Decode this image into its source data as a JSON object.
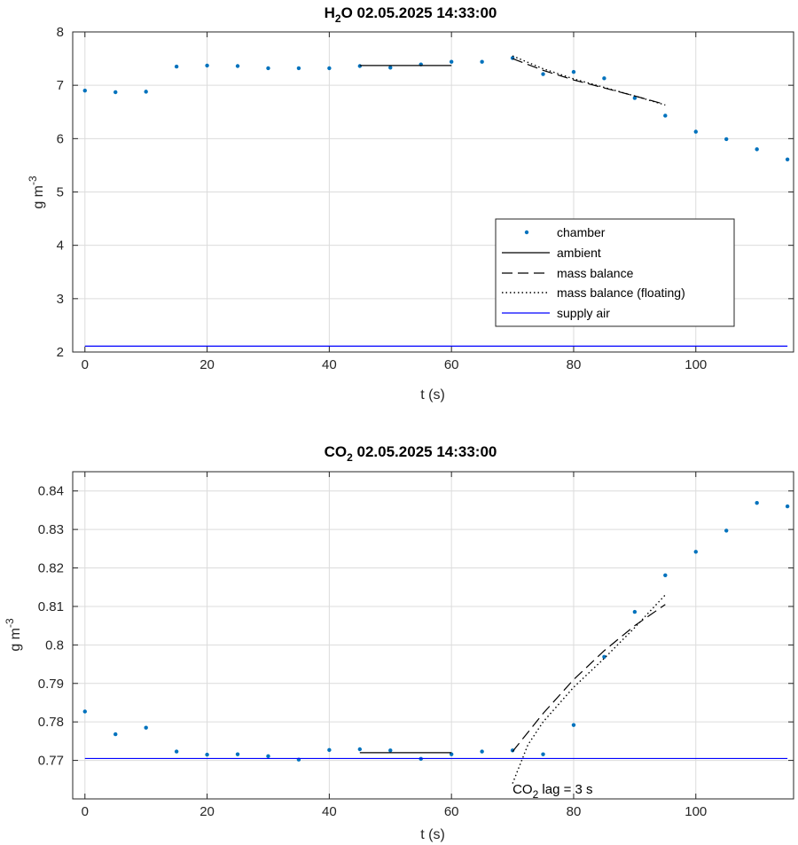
{
  "chart_data": [
    {
      "type": "scatter",
      "title_main": "H",
      "title_sub": "2",
      "title_rest": "O  02.05.2025 14:33:00",
      "xlabel": "t (s)",
      "ylabel_main": "g m",
      "ylabel_sup": "-3",
      "xlim": [
        -2,
        116
      ],
      "ylim": [
        2,
        8
      ],
      "xticks": [
        0,
        20,
        40,
        60,
        80,
        100
      ],
      "yticks": [
        2,
        3,
        4,
        5,
        6,
        7,
        8
      ],
      "grid": true,
      "legend_position": "lower-right",
      "legend": [
        "chamber",
        "ambient",
        "mass balance",
        "mass balance (floating)",
        "supply air"
      ],
      "colors": {
        "chamber": "#0072bd",
        "supply": "#0000ff",
        "line": "#000000"
      },
      "series": [
        {
          "name": "chamber",
          "style": "points",
          "x": [
            0,
            5,
            10,
            15,
            20,
            25,
            30,
            35,
            40,
            45,
            50,
            55,
            60,
            65,
            70,
            75,
            80,
            85,
            90,
            95,
            100,
            105,
            110,
            115
          ],
          "y": [
            6.9,
            6.87,
            6.88,
            7.35,
            7.37,
            7.36,
            7.32,
            7.32,
            7.32,
            7.36,
            7.33,
            7.39,
            7.44,
            7.44,
            7.51,
            7.21,
            7.25,
            7.13,
            6.76,
            6.43,
            6.13,
            5.99,
            5.8,
            5.61
          ]
        },
        {
          "name": "ambient",
          "style": "solid",
          "x": [
            45,
            60
          ],
          "y": [
            7.37,
            7.37
          ]
        },
        {
          "name": "mass balance",
          "style": "dashed",
          "x": [
            70,
            75,
            80,
            85,
            90,
            95
          ],
          "y": [
            7.5,
            7.28,
            7.1,
            6.95,
            6.8,
            6.64
          ]
        },
        {
          "name": "mass balance (floating)",
          "style": "dotted",
          "x": [
            70,
            75,
            80,
            85,
            90,
            95
          ],
          "y": [
            7.55,
            7.31,
            7.12,
            6.96,
            6.8,
            6.63
          ]
        },
        {
          "name": "supply air",
          "style": "solid-blue",
          "x": [
            0,
            115
          ],
          "y": [
            2.11,
            2.11
          ]
        }
      ],
      "annotation": null
    },
    {
      "type": "scatter",
      "title_main": "CO",
      "title_sub": "2",
      "title_rest": "  02.05.2025 14:33:00",
      "xlabel": "t (s)",
      "ylabel_main": "g m",
      "ylabel_sup": "-3",
      "xlim": [
        -2,
        116
      ],
      "ylim": [
        0.76,
        0.845
      ],
      "xticks": [
        0,
        20,
        40,
        60,
        80,
        100
      ],
      "yticks": [
        0.77,
        0.78,
        0.79,
        0.8,
        0.81,
        0.82,
        0.83,
        0.84
      ],
      "ytick_labels": [
        "0.77",
        "0.78",
        "0.79",
        "0.8",
        "0.81",
        "0.82",
        "0.83",
        "0.84"
      ],
      "grid": true,
      "legend": [],
      "colors": {
        "chamber": "#0072bd",
        "supply": "#0000ff",
        "line": "#000000"
      },
      "series": [
        {
          "name": "chamber",
          "style": "points",
          "x": [
            0,
            5,
            10,
            15,
            20,
            25,
            30,
            35,
            40,
            45,
            50,
            55,
            60,
            65,
            70,
            75,
            80,
            85,
            90,
            95,
            100,
            105,
            110,
            115
          ],
          "y": [
            0.7827,
            0.7768,
            0.7785,
            0.7723,
            0.7715,
            0.7716,
            0.7711,
            0.7702,
            0.7727,
            0.7729,
            0.7726,
            0.7704,
            0.7716,
            0.7723,
            0.7726,
            0.7716,
            0.7792,
            0.7969,
            0.8086,
            0.8181,
            0.8242,
            0.8297,
            0.8369,
            0.836
          ]
        },
        {
          "name": "ambient",
          "style": "solid",
          "x": [
            45,
            60
          ],
          "y": [
            0.772,
            0.772
          ]
        },
        {
          "name": "mass balance",
          "style": "dashed",
          "x": [
            70,
            75,
            80,
            85,
            90,
            95
          ],
          "y": [
            0.7723,
            0.7822,
            0.791,
            0.7985,
            0.805,
            0.8105
          ]
        },
        {
          "name": "mass balance (floating)",
          "style": "dotted",
          "x": [
            70,
            72.5,
            75,
            80,
            85,
            90,
            95
          ],
          "y": [
            0.764,
            0.774,
            0.78,
            0.789,
            0.7965,
            0.8045,
            0.813
          ]
        },
        {
          "name": "supply air",
          "style": "solid-blue",
          "x": [
            0,
            115
          ],
          "y": [
            0.7705,
            0.7705
          ]
        }
      ],
      "annotation": {
        "main": "CO",
        "sub": "2",
        "rest": " lag = 3 s",
        "x": 70,
        "y": 0.7614
      }
    }
  ]
}
